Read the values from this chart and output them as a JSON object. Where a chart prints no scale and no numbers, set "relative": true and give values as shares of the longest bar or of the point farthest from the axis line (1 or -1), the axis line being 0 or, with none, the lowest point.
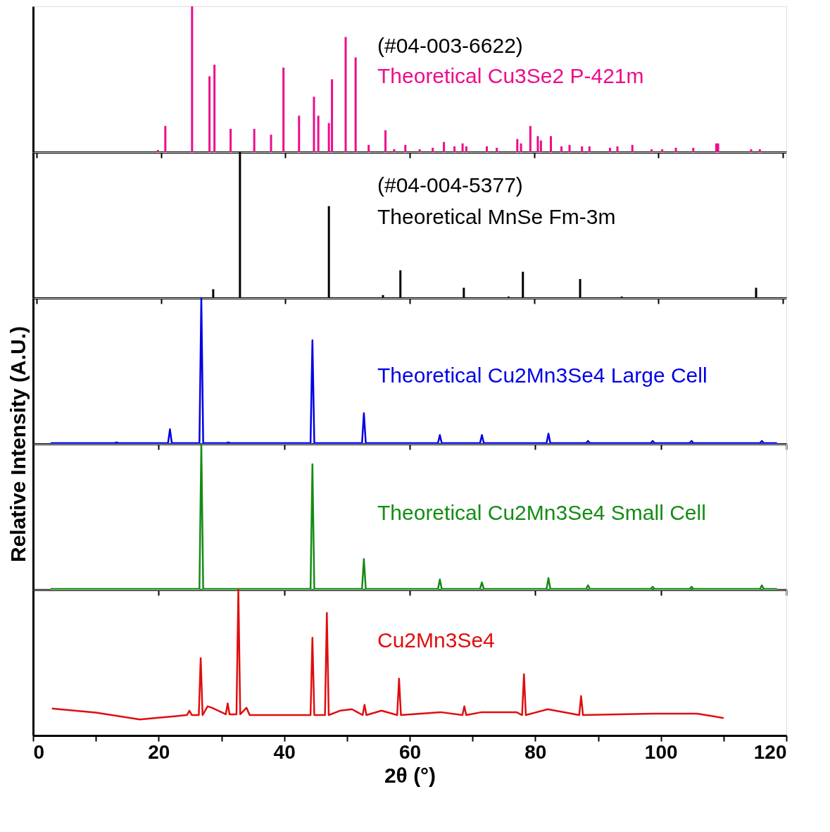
{
  "chart_data": [
    {
      "type": "bar",
      "relative": true,
      "xlim": [
        0,
        120
      ],
      "xticks": [
        {
          "value": 0,
          "label": null
        },
        {
          "value": 20,
          "label": null
        },
        {
          "value": 40,
          "label": null
        },
        {
          "value": 60,
          "label": null
        },
        {
          "value": 80,
          "label": null
        },
        {
          "value": 100,
          "label": null
        },
        {
          "value": 120,
          "label": null
        }
      ],
      "tick_labels": false,
      "annotations": [
        "(#04-003-6622)"
      ],
      "x": [
        19.5,
        20.7,
        25.0,
        27.8,
        28.6,
        31.2,
        35.0,
        37.7,
        39.7,
        42.2,
        44.6,
        45.3,
        47.0,
        47.5,
        49.7,
        51.3,
        53.4,
        56.1,
        57.5,
        59.3,
        61.6,
        63.7,
        65.5,
        67.2,
        68.5,
        69.1,
        72.4,
        74.0,
        77.3,
        77.9,
        79.4,
        80.6,
        81.1,
        82.7,
        84.4,
        85.7,
        87.7,
        88.9,
        92.2,
        93.4,
        95.8,
        98.9,
        100.6,
        102.8,
        105.6,
        109.3,
        109.6,
        114.9,
        116.3
      ],
      "series": [
        {
          "name": "Theoretical Cu3Se2 P-421m",
          "color": "#ec0d8c",
          "values": [
            0.015,
            0.18,
            1.0,
            0.52,
            0.6,
            0.16,
            0.16,
            0.12,
            0.58,
            0.25,
            0.38,
            0.25,
            0.2,
            0.5,
            0.79,
            0.65,
            0.05,
            0.15,
            0.02,
            0.05,
            0.02,
            0.03,
            0.07,
            0.04,
            0.06,
            0.04,
            0.04,
            0.03,
            0.09,
            0.06,
            0.18,
            0.11,
            0.08,
            0.11,
            0.04,
            0.05,
            0.04,
            0.04,
            0.03,
            0.04,
            0.05,
            0.02,
            0.02,
            0.03,
            0.03,
            0.06,
            0.06,
            0.02,
            0.02
          ]
        }
      ]
    },
    {
      "type": "bar",
      "relative": true,
      "xlim": [
        0,
        120
      ],
      "xticks": [
        {
          "value": 0,
          "label": null
        },
        {
          "value": 20,
          "label": null
        },
        {
          "value": 40,
          "label": null
        },
        {
          "value": 60,
          "label": null
        },
        {
          "value": 80,
          "label": null
        },
        {
          "value": 100,
          "label": null
        },
        {
          "value": 120,
          "label": null
        }
      ],
      "tick_labels": false,
      "annotations": [
        "(#04-004-5377)"
      ],
      "x": [
        28.4,
        32.7,
        47.0,
        55.7,
        58.5,
        68.7,
        75.9,
        78.2,
        87.4,
        94.1,
        115.7
      ],
      "series": [
        {
          "name": "Theoretical MnSe Fm-3m",
          "color": "#000000",
          "values": [
            0.06,
            1.0,
            0.63,
            0.02,
            0.19,
            0.07,
            0.01,
            0.18,
            0.13,
            0.01,
            0.07
          ]
        }
      ]
    },
    {
      "type": "line",
      "relative": true,
      "xlim": [
        0,
        120
      ],
      "xticks": [
        {
          "value": 0,
          "label": null
        },
        {
          "value": 20,
          "label": null
        },
        {
          "value": 40,
          "label": null
        },
        {
          "value": 60,
          "label": null
        },
        {
          "value": 80,
          "label": null
        },
        {
          "value": 100,
          "label": null
        },
        {
          "value": 120,
          "label": null
        }
      ],
      "tick_labels": false,
      "ylabel": "Relative Intensity (A.U.)",
      "x": [
        2.8,
        13.0,
        13.3,
        13.6,
        21.5,
        21.8,
        22.1,
        26.5,
        26.8,
        27.1,
        30.8,
        31.1,
        31.4,
        44.2,
        44.5,
        44.8,
        52.4,
        52.7,
        53.0,
        64.5,
        64.8,
        65.1,
        71.2,
        71.5,
        71.8,
        81.8,
        82.1,
        82.4,
        88.1,
        88.4,
        88.7,
        98.4,
        98.7,
        99.0,
        104.6,
        104.9,
        105.2,
        115.8,
        116.1,
        116.4,
        118.5
      ],
      "series": [
        {
          "name": "Theoretical Cu2Mn3Se4 Large Cell",
          "color": "#0000e6",
          "values": [
            0.005,
            0.005,
            0.01,
            0.005,
            0.005,
            0.1,
            0.005,
            0.005,
            1.0,
            0.005,
            0.005,
            0.01,
            0.005,
            0.005,
            0.71,
            0.005,
            0.005,
            0.21,
            0.005,
            0.005,
            0.06,
            0.005,
            0.005,
            0.06,
            0.005,
            0.005,
            0.07,
            0.005,
            0.005,
            0.02,
            0.005,
            0.005,
            0.02,
            0.005,
            0.005,
            0.02,
            0.005,
            0.005,
            0.02,
            0.005,
            0.005
          ]
        }
      ]
    },
    {
      "type": "line",
      "relative": true,
      "xlim": [
        0,
        120
      ],
      "xticks": [
        {
          "value": 0,
          "label": null
        },
        {
          "value": 20,
          "label": null
        },
        {
          "value": 40,
          "label": null
        },
        {
          "value": 60,
          "label": null
        },
        {
          "value": 80,
          "label": null
        },
        {
          "value": 100,
          "label": null
        },
        {
          "value": 120,
          "label": null
        }
      ],
      "tick_labels": false,
      "x": [
        2.8,
        26.5,
        26.8,
        27.1,
        44.2,
        44.5,
        44.8,
        52.4,
        52.7,
        53.0,
        64.5,
        64.8,
        65.1,
        71.2,
        71.5,
        71.8,
        81.8,
        82.1,
        82.4,
        88.1,
        88.4,
        88.7,
        98.4,
        98.7,
        99.0,
        104.6,
        104.9,
        105.2,
        115.8,
        116.1,
        116.4,
        118.5
      ],
      "series": [
        {
          "name": "Theoretical Cu2Mn3Se4 Small Cell",
          "color": "#148c14",
          "values": [
            0.005,
            0.005,
            1.0,
            0.005,
            0.005,
            0.86,
            0.005,
            0.005,
            0.21,
            0.005,
            0.005,
            0.07,
            0.005,
            0.005,
            0.05,
            0.005,
            0.005,
            0.08,
            0.005,
            0.005,
            0.03,
            0.005,
            0.005,
            0.02,
            0.005,
            0.005,
            0.02,
            0.005,
            0.005,
            0.03,
            0.005,
            0.005
          ]
        }
      ]
    },
    {
      "type": "line",
      "relative": true,
      "xlim": [
        0,
        120
      ],
      "xticks": [
        0,
        {
          "value": 10,
          "label": null
        },
        20,
        {
          "value": 30,
          "label": null
        },
        40,
        {
          "value": 50,
          "label": null
        },
        60,
        {
          "value": 70,
          "label": null
        },
        80,
        {
          "value": 90,
          "label": null
        },
        100,
        {
          "value": 110,
          "label": null
        },
        120
      ],
      "tick_labels": "x",
      "xlabel": "2θ (°)",
      "x": [
        3.0,
        10.0,
        17.0,
        24.5,
        24.9,
        25.3,
        26.4,
        26.7,
        27.0,
        27.8,
        28.5,
        30.7,
        31.0,
        31.3,
        32.4,
        32.7,
        33.0,
        34.0,
        34.5,
        44.2,
        44.5,
        44.8,
        46.5,
        46.8,
        47.1,
        48.9,
        50.8,
        52.5,
        52.8,
        53.1,
        55.5,
        58.0,
        58.3,
        58.6,
        64.9,
        68.4,
        68.7,
        69.0,
        71.5,
        77.0,
        77.9,
        78.2,
        78.5,
        82.0,
        87.0,
        87.3,
        87.6,
        98.8,
        105.8,
        110.0
      ],
      "series": [
        {
          "name": "Cu2Mn3Se4",
          "color": "#e00e0e",
          "values": [
            0.185,
            0.157,
            0.11,
            0.14,
            0.17,
            0.14,
            0.14,
            0.53,
            0.14,
            0.2,
            0.19,
            0.145,
            0.22,
            0.145,
            0.145,
            1.0,
            0.145,
            0.19,
            0.14,
            0.14,
            0.67,
            0.14,
            0.14,
            0.84,
            0.14,
            0.17,
            0.18,
            0.14,
            0.21,
            0.14,
            0.17,
            0.14,
            0.39,
            0.14,
            0.16,
            0.14,
            0.2,
            0.14,
            0.16,
            0.16,
            0.14,
            0.42,
            0.14,
            0.18,
            0.14,
            0.27,
            0.14,
            0.15,
            0.15,
            0.12
          ]
        }
      ]
    }
  ]
}
